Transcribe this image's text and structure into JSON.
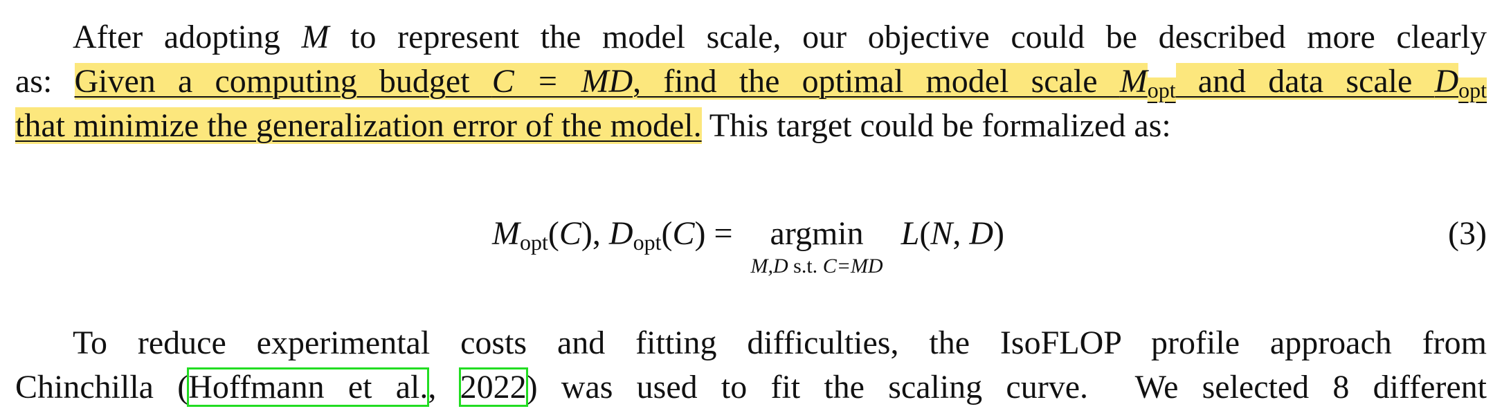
{
  "paragraph_1": {
    "lines": [
      {
        "segments": [
          {
            "text": "After adopting "
          },
          {
            "text": "M",
            "italic": true
          },
          {
            "text": " to represent the model scale, our objective could be described more clearly"
          }
        ]
      },
      {
        "segments": [
          {
            "text": "as: "
          },
          {
            "text": "Given a computing budget ",
            "highlight": true
          },
          {
            "text": "C = MD",
            "italic": true,
            "highlight": true
          },
          {
            "text": ", find the optimal model scale ",
            "highlight": true
          },
          {
            "text": "M",
            "italic": true,
            "highlight": true
          },
          {
            "text": "opt",
            "sub": true,
            "highlight": true
          },
          {
            "text": " and data scale ",
            "highlight": true
          },
          {
            "text": "D",
            "italic": true,
            "highlight": true
          },
          {
            "text": "opt",
            "sub": true,
            "highlight": true
          }
        ]
      },
      {
        "segments": [
          {
            "text": "that minimize the generalization error of the model.",
            "highlight": true
          },
          {
            "text": " This target could be formalized as:"
          }
        ]
      }
    ]
  },
  "equation": {
    "lhs": [
      {
        "text": "M",
        "italic": true
      },
      {
        "text": "opt",
        "sub": true
      },
      {
        "text": "("
      },
      {
        "text": "C",
        "italic": true
      },
      {
        "text": "), "
      },
      {
        "text": "D",
        "italic": true
      },
      {
        "text": "opt",
        "sub": true
      },
      {
        "text": "("
      },
      {
        "text": "C",
        "italic": true
      },
      {
        "text": ") ="
      }
    ],
    "operator": "argmin",
    "limit": [
      {
        "text": "M,D",
        "italic": true
      },
      {
        "text": " s.t. "
      },
      {
        "text": "C=MD",
        "italic": true
      }
    ],
    "rhs": [
      {
        "text": "L",
        "italic": true
      },
      {
        "text": "("
      },
      {
        "text": "N",
        "italic": true
      },
      {
        "text": ", "
      },
      {
        "text": "D",
        "italic": true
      },
      {
        "text": ")"
      }
    ],
    "number": "(3)"
  },
  "paragraph_2": {
    "lines": [
      {
        "segments": [
          {
            "text": "To reduce experimental costs and fitting difficulties, the IsoFLOP profile approach from"
          }
        ]
      },
      {
        "segments": [
          {
            "text": "Chinchilla ("
          },
          {
            "text": "Hoffmann et al.",
            "link": true
          },
          {
            "text": ", "
          },
          {
            "text": "2022",
            "link": true
          },
          {
            "text": ") was used to fit the scaling curve.  We selected 8 different"
          }
        ]
      }
    ]
  }
}
